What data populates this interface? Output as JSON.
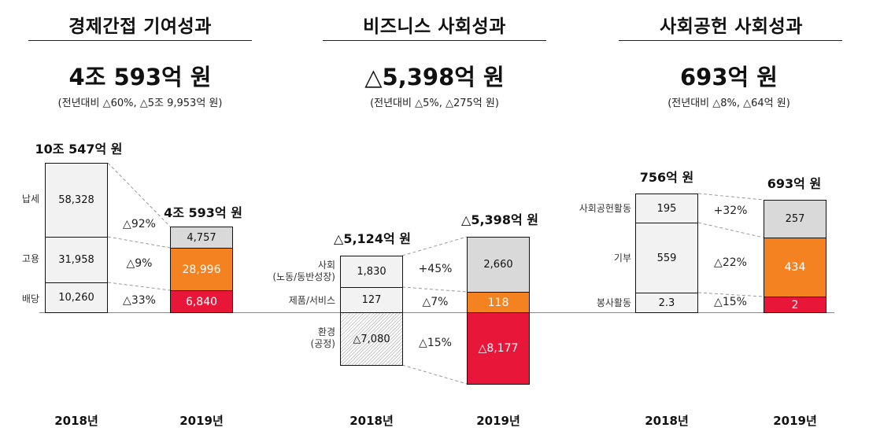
{
  "colors": {
    "prev_fill": "#F2F2F2",
    "top_fill": "#D9D9D9",
    "orange": "#F58220",
    "red": "#E8173A",
    "hatch": "#BFBFBF"
  },
  "chart_data": [
    {
      "type": "bar",
      "stacked": true,
      "title": "경제간접 기여성과",
      "headline": "4조 593억 원",
      "subtitle": "(전년대비 △60%, △5조 9,953억 원)",
      "categories": [
        "2018년",
        "2019년"
      ],
      "totals": [
        "10조 547억 원",
        "4조 593억 원"
      ],
      "series": [
        {
          "name": "납세",
          "values": [
            58328,
            4757
          ],
          "labels": [
            "58,328",
            "4,757"
          ],
          "change": "△92%"
        },
        {
          "name": "고용",
          "values": [
            31958,
            28996
          ],
          "labels": [
            "31,958",
            "28,996"
          ],
          "change": "△9%"
        },
        {
          "name": "배당",
          "values": [
            10260,
            6840
          ],
          "labels": [
            "10,260",
            "6,840"
          ],
          "change": "△33%"
        }
      ]
    },
    {
      "type": "bar",
      "stacked": true,
      "title": "비즈니스 사회성과",
      "headline": "△5,398억 원",
      "subtitle": "(전년대비 △5%, △275억 원)",
      "categories": [
        "2018년",
        "2019년"
      ],
      "totals": [
        "△5,124억 원",
        "△5,398억 원"
      ],
      "series": [
        {
          "name": "사회",
          "name2": "(노동/동반성장)",
          "values": [
            1830,
            2660
          ],
          "labels": [
            "1,830",
            "2,660"
          ],
          "change": "+45%"
        },
        {
          "name": "제품/서비스",
          "values": [
            127,
            118
          ],
          "labels": [
            "127",
            "118"
          ],
          "change": "△7%"
        },
        {
          "name": "환경",
          "name2": "(공정)",
          "values": [
            -7080,
            -8177
          ],
          "labels": [
            "△7,080",
            "△8,177"
          ],
          "change": "△15%"
        }
      ]
    },
    {
      "type": "bar",
      "stacked": true,
      "title": "사회공헌 사회성과",
      "headline": "693억 원",
      "subtitle": "(전년대비 △8%, △64억 원)",
      "categories": [
        "2018년",
        "2019년"
      ],
      "totals": [
        "756억 원",
        "693억 원"
      ],
      "series": [
        {
          "name": "사회공헌활동",
          "values": [
            195,
            257
          ],
          "labels": [
            "195",
            "257"
          ],
          "change": "+32%"
        },
        {
          "name": "기부",
          "values": [
            559,
            434
          ],
          "labels": [
            "559",
            "434"
          ],
          "change": "△22%"
        },
        {
          "name": "봉사활동",
          "values": [
            2.3,
            2
          ],
          "labels": [
            "2.3",
            "2"
          ],
          "change": "△15%"
        }
      ]
    }
  ]
}
